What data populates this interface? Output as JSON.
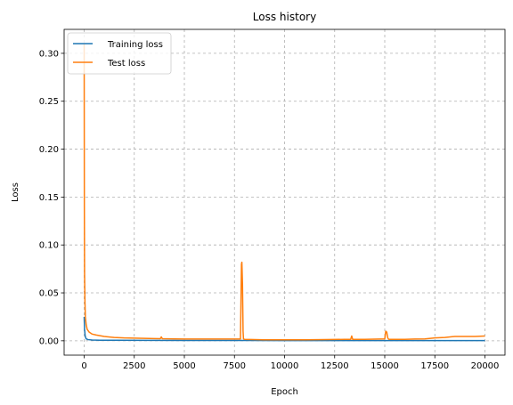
{
  "chart_data": {
    "type": "line",
    "title": "Loss history",
    "xlabel": "Epoch",
    "ylabel": "Loss",
    "xlim": [
      -1000,
      21000
    ],
    "ylim": [
      -0.015,
      0.325
    ],
    "xticks": [
      0,
      2500,
      5000,
      7500,
      10000,
      12500,
      15000,
      17500,
      20000
    ],
    "xtick_labels": [
      "0",
      "2500",
      "5000",
      "7500",
      "10000",
      "12500",
      "15000",
      "17500",
      "20000"
    ],
    "yticks": [
      0.0,
      0.05,
      0.1,
      0.15,
      0.2,
      0.25,
      0.3
    ],
    "ytick_labels": [
      "0.00",
      "0.05",
      "0.10",
      "0.15",
      "0.20",
      "0.25",
      "0.30"
    ],
    "grid": true,
    "legend_position": "top-left",
    "series": [
      {
        "name": "Training loss",
        "color": "#1f77b4",
        "x": [
          0,
          20,
          50,
          100,
          200,
          400,
          800,
          1500,
          3000,
          5000,
          7800,
          7900,
          8000,
          10000,
          12500,
          15000,
          17500,
          20000
        ],
        "y": [
          0.025,
          0.012,
          0.005,
          0.002,
          0.0012,
          0.0008,
          0.0006,
          0.0005,
          0.0004,
          0.0003,
          0.0003,
          0.0003,
          0.0003,
          0.0002,
          0.0002,
          0.0002,
          0.0002,
          0.0002
        ]
      },
      {
        "name": "Test loss",
        "color": "#ff7f0e",
        "x": [
          0,
          10,
          20,
          40,
          60,
          100,
          150,
          250,
          400,
          600,
          1000,
          1500,
          2000,
          2500,
          3000,
          3500,
          3800,
          3850,
          3900,
          4500,
          5000,
          6000,
          7000,
          7800,
          7850,
          7870,
          7900,
          7930,
          7950,
          8000,
          9000,
          10000,
          11000,
          12000,
          13000,
          13300,
          13350,
          13400,
          14000,
          15000,
          15050,
          15100,
          15150,
          15200,
          16000,
          16500,
          17000,
          17500,
          18000,
          18500,
          19000,
          19500,
          20000
        ],
        "y": [
          0.31,
          0.14,
          0.07,
          0.04,
          0.025,
          0.017,
          0.012,
          0.009,
          0.007,
          0.006,
          0.0045,
          0.0035,
          0.003,
          0.0028,
          0.0025,
          0.0023,
          0.0022,
          0.004,
          0.0022,
          0.002,
          0.0018,
          0.0018,
          0.0018,
          0.0018,
          0.08,
          0.082,
          0.06,
          0.01,
          0.002,
          0.0015,
          0.001,
          0.001,
          0.001,
          0.0012,
          0.0015,
          0.0015,
          0.005,
          0.0015,
          0.0015,
          0.002,
          0.01,
          0.009,
          0.003,
          0.0015,
          0.0015,
          0.0018,
          0.002,
          0.003,
          0.0035,
          0.0045,
          0.0045,
          0.0045,
          0.005
        ]
      }
    ]
  }
}
